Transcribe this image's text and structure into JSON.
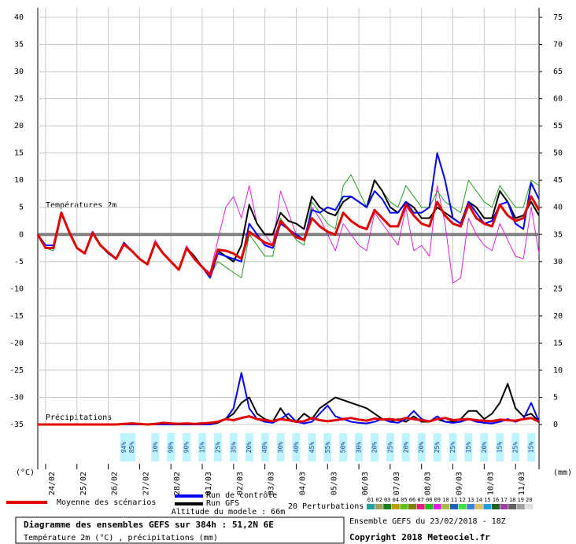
{
  "chart_data": {
    "type": "line",
    "title": "Diagramme des ensembles GEFS sur 384h : 51,2N 6E",
    "subtitle": "Température 2m (°C) , précipitations (mm)",
    "run_info": "Ensemble GEFS du 23/02/2018 - 18Z",
    "copyright": "Copyright 2018 Meteociel.fr",
    "temperature_label": "Températures 2m",
    "precipitation_label": "Précipitations",
    "altitude": "Altitude du modele : 66m",
    "ylabel": "(°C)",
    "y2label": "(mm)",
    "perturbations_label": "20 Perturbations",
    "grid": true,
    "zero_line_color": "#808080",
    "xlim": [
      0,
      384
    ],
    "xticks": [
      {
        "value": 6,
        "label": "24/02"
      },
      {
        "value": 30,
        "label": "25/02"
      },
      {
        "value": 54,
        "label": "26/02"
      },
      {
        "value": 78,
        "label": "27/02"
      },
      {
        "value": 102,
        "label": "28/02"
      },
      {
        "value": 126,
        "label": "01/03"
      },
      {
        "value": 150,
        "label": "02/03"
      },
      {
        "value": 174,
        "label": "03/03"
      },
      {
        "value": 198,
        "label": "04/03"
      },
      {
        "value": 222,
        "label": "05/03"
      },
      {
        "value": 246,
        "label": "06/03"
      },
      {
        "value": 270,
        "label": "07/03"
      },
      {
        "value": 294,
        "label": "08/03"
      },
      {
        "value": 318,
        "label": "09/03"
      },
      {
        "value": 342,
        "label": "10/03"
      },
      {
        "value": 366,
        "label": "11/03"
      }
    ],
    "ylim": [
      -35,
      40
    ],
    "yticks": [
      -35,
      -30,
      -25,
      -20,
      -15,
      -10,
      -5,
      0,
      5,
      10,
      15,
      20,
      25,
      30,
      35,
      40
    ],
    "y2lim": [
      0,
      75
    ],
    "y2ticks": [
      0,
      5,
      10,
      15,
      20,
      25,
      30,
      35,
      40,
      45,
      50,
      55,
      60,
      65,
      70,
      75
    ],
    "x": [
      0,
      6,
      12,
      18,
      24,
      30,
      36,
      42,
      48,
      54,
      60,
      66,
      72,
      78,
      84,
      90,
      96,
      102,
      108,
      114,
      120,
      126,
      132,
      138,
      144,
      150,
      156,
      162,
      168,
      174,
      180,
      186,
      192,
      198,
      204,
      210,
      216,
      222,
      228,
      234,
      240,
      246,
      252,
      258,
      264,
      270,
      276,
      282,
      288,
      294,
      300,
      306,
      312,
      318,
      324,
      330,
      336,
      342,
      348,
      354,
      360,
      366,
      372,
      378,
      384
    ],
    "perturbations": [
      {
        "color": "#e020e0",
        "values": [
          0,
          -2.5,
          -2.5,
          4,
          0.5,
          -2.5,
          -3.5,
          0.3,
          -2,
          -3.3,
          -4.5,
          -1.8,
          -3,
          -4.5,
          -5.5,
          -1,
          -3.5,
          -5,
          -6.5,
          -2,
          -4.5,
          -6,
          -7,
          -1,
          5,
          7,
          3,
          9,
          2,
          0,
          -2,
          8,
          4,
          0,
          -1,
          5,
          3,
          0,
          -3,
          2,
          0,
          -2,
          -3,
          4,
          2,
          0,
          -2,
          5,
          -3,
          -2,
          -4,
          9,
          2,
          -9,
          -8,
          3,
          0,
          -2,
          -3,
          2,
          -1,
          -4,
          -4.5,
          5,
          -3.5
        ]
      },
      {
        "color": "#20a020",
        "values": [
          0,
          -2.5,
          -3,
          4,
          0.5,
          -2.5,
          -3.5,
          0.3,
          -2,
          -3.3,
          -4.5,
          -1.8,
          -3,
          -4.5,
          -5.5,
          -1.5,
          -3.5,
          -5,
          -6.5,
          -2.5,
          -4.5,
          -6,
          -7.5,
          -5,
          -6,
          -7,
          -8,
          0,
          -2,
          -4,
          -4,
          3,
          1,
          -1,
          -2,
          6,
          4,
          2,
          1,
          9,
          11,
          8,
          5,
          10,
          8,
          6,
          5,
          9,
          7,
          5,
          5,
          8,
          6,
          5,
          4,
          10,
          8,
          6,
          5,
          9,
          7,
          5,
          5,
          10,
          9
        ]
      }
    ],
    "series": [
      {
        "name": "Run GFS",
        "color": "#000000",
        "values": [
          0,
          -2.5,
          -2.5,
          4,
          0.5,
          -2.5,
          -3.5,
          0.3,
          -2,
          -3.3,
          -4.5,
          -1.8,
          -3,
          -4.5,
          -5.5,
          -1.5,
          -3.5,
          -5,
          -6.5,
          -2.5,
          -4,
          -6,
          -7.5,
          -3,
          -4,
          -5,
          -2,
          5.5,
          2,
          0,
          0,
          4,
          2.5,
          2,
          1,
          7,
          5,
          4,
          3.5,
          6,
          7,
          6,
          5,
          10,
          8,
          5,
          4,
          6,
          5,
          3,
          3,
          5,
          4,
          3,
          2,
          6,
          5,
          3,
          3,
          8,
          6,
          3,
          3.5,
          6,
          3.5
        ],
        "precipitation": [
          0,
          0,
          0,
          0,
          0,
          0,
          0,
          0,
          0,
          0,
          0,
          0,
          0,
          0,
          0,
          0,
          0,
          0,
          0,
          0,
          0,
          0,
          0,
          0.3,
          1,
          2,
          4,
          5,
          2,
          1,
          0.5,
          3,
          1,
          0.5,
          2,
          1,
          3,
          4,
          5,
          4.5,
          4,
          3.5,
          3,
          2,
          1,
          0.5,
          1,
          0.5,
          1.5,
          0.5,
          0.5,
          1,
          0.5,
          0.5,
          1,
          2.5,
          2.5,
          1,
          2,
          4,
          7.5,
          3,
          1.5,
          2,
          0.5
        ]
      },
      {
        "name": "Run de contrôle",
        "color": "#0000ff",
        "values": [
          0,
          -2,
          -2,
          4,
          0.5,
          -2.5,
          -3.5,
          0.5,
          -2,
          -3.5,
          -4.5,
          -1.5,
          -3,
          -4.5,
          -5.5,
          -1.5,
          -3.5,
          -5,
          -6.5,
          -2.5,
          -4.5,
          -6,
          -8,
          -3.5,
          -4,
          -4.5,
          -5,
          2,
          0,
          -2,
          -2.5,
          2,
          1,
          0,
          -1,
          4.5,
          4,
          5,
          4.5,
          7,
          7,
          6,
          5,
          8,
          6.5,
          4,
          4,
          6,
          4,
          4,
          5,
          15,
          10,
          3,
          2,
          6,
          4,
          2,
          2.5,
          5.5,
          6,
          2,
          1,
          9.5,
          6.5
        ],
        "precipitation": [
          0,
          0,
          0,
          0,
          0,
          0,
          0,
          0,
          0,
          0,
          0,
          0,
          0,
          0,
          0,
          0,
          0,
          0,
          0,
          0,
          0,
          0,
          0,
          0.5,
          1,
          3,
          9.5,
          3,
          1,
          0.5,
          0.3,
          1,
          2,
          0.5,
          0.2,
          0.5,
          2,
          3.5,
          1.5,
          1,
          0.5,
          0.3,
          0.2,
          0.5,
          1,
          0.5,
          0.3,
          1,
          2.5,
          1,
          0.5,
          1.5,
          0.5,
          0.3,
          0.5,
          1,
          0.5,
          0.3,
          0.2,
          0.5,
          1,
          0.5,
          1,
          4,
          0.5
        ]
      },
      {
        "name": "Moyenne des scénarios",
        "color": "#e00000",
        "values": [
          0,
          -2.5,
          -2.5,
          4,
          0.5,
          -2.5,
          -3.5,
          0.3,
          -2,
          -3.3,
          -4.5,
          -1.8,
          -3,
          -4.5,
          -5.5,
          -1.5,
          -3.5,
          -5,
          -6.5,
          -2.5,
          -4.5,
          -6,
          -7.5,
          -2.8,
          -3,
          -3.5,
          -4.5,
          0.5,
          -0.5,
          -1.5,
          -2,
          2.5,
          1,
          -0.5,
          -1,
          3,
          1.5,
          0.5,
          0,
          4,
          2.5,
          1.5,
          1,
          4.5,
          3,
          1.5,
          1.5,
          5.5,
          3.5,
          2,
          1.5,
          6,
          3.5,
          2,
          1.5,
          5.5,
          3,
          2,
          1.5,
          5.5,
          3.5,
          2.5,
          3,
          7,
          4.5
        ],
        "precipitation": [
          0,
          0,
          0,
          0,
          0,
          0,
          0,
          0,
          0,
          0,
          0,
          0.1,
          0.2,
          0.1,
          0,
          0.1,
          0.3,
          0.2,
          0.1,
          0.2,
          0.1,
          0.2,
          0.3,
          0.5,
          1,
          0.8,
          1.2,
          1.5,
          1,
          0.8,
          0.6,
          1,
          0.8,
          0.5,
          0.6,
          1.2,
          0.8,
          0.6,
          0.8,
          1,
          1.2,
          0.9,
          0.7,
          1.1,
          0.9,
          1,
          0.8,
          1.2,
          1,
          0.8,
          0.6,
          1,
          1.2,
          0.8,
          0.9,
          1,
          0.8,
          0.7,
          0.6,
          0.9,
          0.8,
          0.7,
          1,
          1.2,
          0.5
        ]
      }
    ],
    "perturbation_legend": [
      {
        "label": "01",
        "color": "#20a0a0"
      },
      {
        "label": "02",
        "color": "#a0a060"
      },
      {
        "label": "03",
        "color": "#208020"
      },
      {
        "label": "04",
        "color": "#c0a000"
      },
      {
        "label": "05",
        "color": "#60c020"
      },
      {
        "label": "06",
        "color": "#808000"
      },
      {
        "label": "07",
        "color": "#e02080"
      },
      {
        "label": "08",
        "color": "#20c020"
      },
      {
        "label": "09",
        "color": "#e020e0"
      },
      {
        "label": "10",
        "color": "#a0c040"
      },
      {
        "label": "11",
        "color": "#2060c0"
      },
      {
        "label": "12",
        "color": "#40e040"
      },
      {
        "label": "13",
        "color": "#4080e0"
      },
      {
        "label": "14",
        "color": "#e0c060"
      },
      {
        "label": "15",
        "color": "#20a0e0"
      },
      {
        "label": "16",
        "color": "#206020"
      },
      {
        "label": "17",
        "color": "#a040a0"
      },
      {
        "label": "18",
        "color": "#606060"
      },
      {
        "label": "19",
        "color": "#a0a0a0"
      },
      {
        "label": "20",
        "color": "#e0e0e0"
      }
    ],
    "snow": {
      "x": [
        66,
        72,
        90,
        102,
        114,
        126,
        138,
        150,
        162,
        174,
        186,
        198,
        210,
        222,
        234,
        246,
        258,
        270,
        282,
        294,
        306,
        318,
        330,
        342,
        354,
        366,
        378
      ],
      "values": [
        94,
        85,
        10,
        98,
        90,
        15,
        25,
        35,
        20,
        40,
        30,
        40,
        45,
        55,
        50,
        30,
        20,
        25,
        20,
        20,
        25,
        25,
        15,
        20,
        15,
        25,
        15
      ],
      "value_labels": [
        "94%",
        "85%",
        "10%",
        "98%",
        "90%",
        "15%",
        "25%",
        "35%",
        "20%",
        "40%",
        "30%",
        "40%",
        "45%",
        "55%",
        "50%",
        "30%",
        "20%",
        "25%",
        "20%",
        "20%",
        "25%",
        "25%",
        "15%",
        "20%",
        "15%",
        "25%",
        "15%"
      ]
    }
  }
}
